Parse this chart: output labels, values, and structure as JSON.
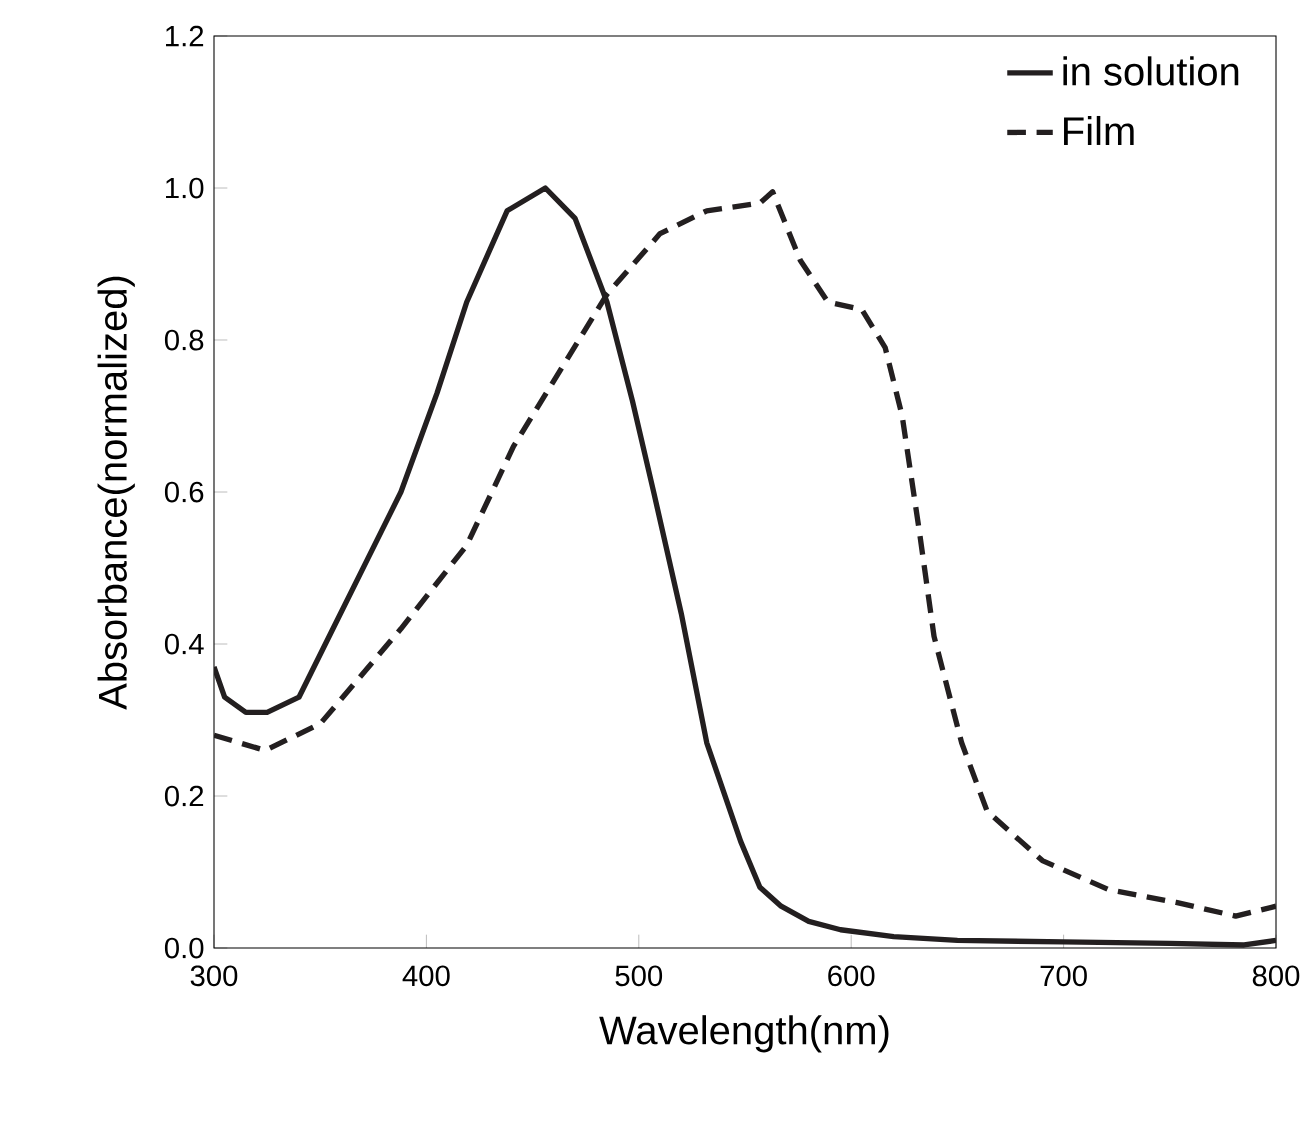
{
  "chart_data": {
    "type": "line",
    "xlabel": "Wavelength(nm)",
    "ylabel": "Absorbance(normalized)",
    "xlim": [
      300,
      800
    ],
    "xticks": [
      300,
      400,
      500,
      600,
      700,
      800
    ],
    "ylim": [
      0,
      1.2
    ],
    "yticks": [
      {
        "value": 0,
        "label": "0.0"
      },
      {
        "value": 0.2,
        "label": "0.2"
      },
      {
        "value": 0.4,
        "label": "0.4"
      },
      {
        "value": 0.6,
        "label": "0.6"
      },
      {
        "value": 0.8,
        "label": "0.8"
      },
      {
        "value": 1.0,
        "label": "1.0"
      },
      {
        "value": 1.2,
        "label": "1.2"
      }
    ],
    "grid": false,
    "legend": "top right",
    "marker": "none",
    "series": [
      {
        "name": "in solution",
        "color": "#231f20",
        "line_style": "solid",
        "x": [
          300,
          305,
          315,
          325,
          340,
          356,
          372,
          388,
          405,
          419,
          438,
          456,
          470,
          485,
          497,
          507,
          520,
          532,
          548,
          557,
          567,
          580,
          595,
          620,
          650,
          700,
          750,
          785,
          800
        ],
        "values": [
          0.37,
          0.33,
          0.31,
          0.31,
          0.33,
          0.42,
          0.51,
          0.6,
          0.73,
          0.85,
          0.97,
          1.0,
          0.96,
          0.85,
          0.72,
          0.6,
          0.44,
          0.27,
          0.14,
          0.08,
          0.055,
          0.035,
          0.024,
          0.015,
          0.01,
          0.008,
          0.006,
          0.004,
          0.01
        ]
      },
      {
        "name": "Film",
        "color": "#231f20",
        "line_style": "dashed",
        "x": [
          300,
          324,
          350,
          388,
          419,
          441,
          463,
          485,
          510,
          532,
          557,
          563,
          576,
          589,
          605,
          616,
          624,
          632,
          639,
          652,
          664,
          690,
          721,
          753,
          781,
          800
        ],
        "values": [
          0.28,
          0.26,
          0.295,
          0.42,
          0.53,
          0.66,
          0.76,
          0.86,
          0.94,
          0.97,
          0.98,
          0.995,
          0.905,
          0.85,
          0.84,
          0.79,
          0.7,
          0.55,
          0.41,
          0.27,
          0.18,
          0.115,
          0.077,
          0.06,
          0.042,
          0.055
        ]
      }
    ]
  }
}
